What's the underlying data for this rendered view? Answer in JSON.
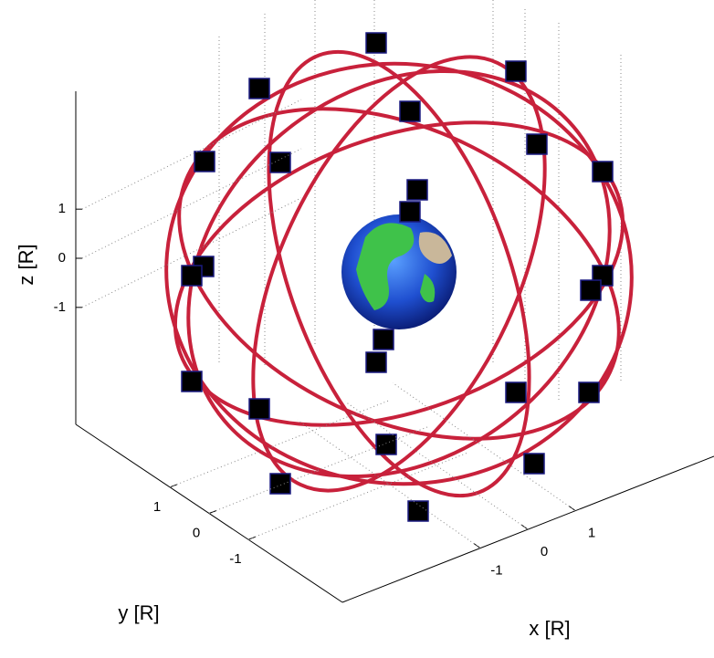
{
  "chart_data": {
    "type": "scatter3d",
    "xlabel": "x [R]",
    "ylabel": "y [R]",
    "zlabel": "z [R]",
    "xlim": [
      -3.4,
      3.4
    ],
    "ylim": [
      -3.4,
      3.4
    ],
    "zlim": [
      -3.4,
      3.4
    ],
    "xticks": [
      -1,
      0,
      1
    ],
    "yticks": [
      -1,
      0,
      1
    ],
    "zticks": [
      -1,
      0,
      1
    ],
    "grid": true
  }
}
